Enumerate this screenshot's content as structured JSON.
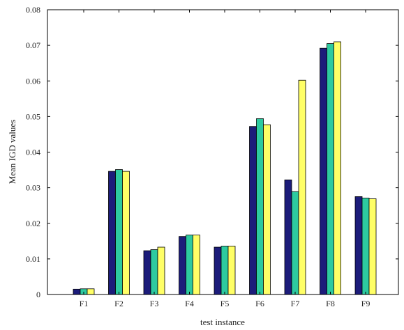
{
  "chart_data": {
    "type": "bar",
    "title": "",
    "xlabel": "test instance",
    "ylabel": "Mean IGD values",
    "categories": [
      "F1",
      "F2",
      "F3",
      "F4",
      "F5",
      "F6",
      "F7",
      "F8",
      "F9"
    ],
    "ylim": [
      0,
      0.08
    ],
    "yticks": [
      "0",
      "0.01",
      "0.02",
      "0.03",
      "0.04",
      "0.05",
      "0.06",
      "0.07",
      "0.08"
    ],
    "grid": false,
    "legend": "none",
    "series": [
      {
        "color": "#1c1c7a",
        "values": [
          0.0015,
          0.0346,
          0.0123,
          0.0163,
          0.0133,
          0.0472,
          0.0322,
          0.0692,
          0.0275
        ]
      },
      {
        "color": "#2dcaa0",
        "values": [
          0.0016,
          0.0351,
          0.0126,
          0.0167,
          0.0136,
          0.0494,
          0.0289,
          0.0705,
          0.0271
        ]
      },
      {
        "color": "#ffff66",
        "values": [
          0.0016,
          0.0346,
          0.0133,
          0.0167,
          0.0136,
          0.0477,
          0.0602,
          0.071,
          0.0269
        ]
      }
    ]
  }
}
